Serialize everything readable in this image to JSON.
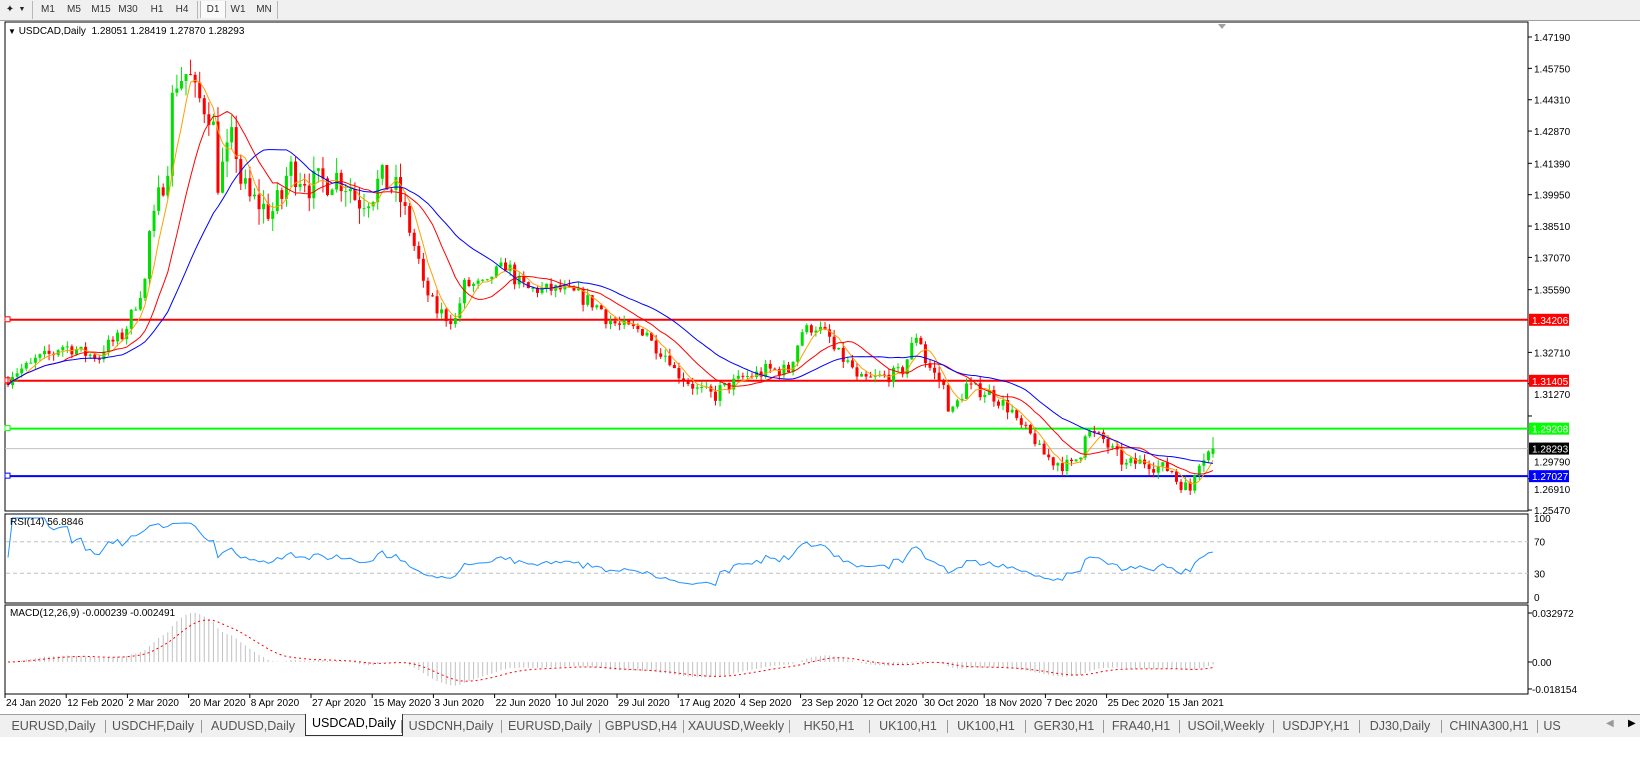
{
  "toolbar": {
    "timeframes": [
      "M1",
      "M5",
      "M15",
      "M30",
      "H1",
      "H4",
      "D1",
      "W1",
      "MN"
    ],
    "active_timeframe": "D1"
  },
  "chart": {
    "symbol_label": "USDCAD,Daily",
    "ohlc_label": "1.28051 1.28419 1.27870 1.28293",
    "price_axis": [
      "1.47190",
      "1.45750",
      "1.44310",
      "1.42870",
      "1.41390",
      "1.39950",
      "1.38510",
      "1.37070",
      "1.35590",
      "1.32710",
      "1.31270",
      "1.29790",
      "1.26910",
      "1.25470"
    ],
    "hlines": [
      {
        "price": 1.34206,
        "label": "1.34206",
        "color": "#ff0000"
      },
      {
        "price": 1.31405,
        "label": "1.31405",
        "color": "#ff0000"
      },
      {
        "price": 1.29208,
        "label": "1.29208",
        "color": "#00ff00"
      },
      {
        "price": 1.27027,
        "label": "1.27027",
        "color": "#0000ff"
      }
    ],
    "bid_line": {
      "price": 1.28293,
      "label": "1.28293",
      "color": "#c0c0c0"
    },
    "colors": {
      "bull": "#00e000",
      "bear": "#ff0000",
      "ma_fast": "#ffa000",
      "ma_mid": "#ff0000",
      "ma_slow": "#0000ff",
      "rsi": "#1e90ff",
      "macd_hist": "#c0c0c0",
      "macd_signal": "#ff0000"
    }
  },
  "rsi": {
    "label": "RSI(14) 56.8846",
    "axis": [
      "100",
      "70",
      "30",
      "0"
    ]
  },
  "macd": {
    "label": "MACD(12,26,9) -0.000239 -0.002491",
    "axis": [
      "0.032972",
      "0.00",
      "-0.018154"
    ]
  },
  "date_axis": [
    "24 Jan 2020",
    "12 Feb 2020",
    "2 Mar 2020",
    "20 Mar 2020",
    "8 Apr 2020",
    "27 Apr 2020",
    "15 May 2020",
    "3 Jun 2020",
    "22 Jun 2020",
    "10 Jul 2020",
    "29 Jul 2020",
    "17 Aug 2020",
    "4 Sep 2020",
    "23 Sep 2020",
    "12 Oct 2020",
    "30 Oct 2020",
    "18 Nov 2020",
    "7 Dec 2020",
    "25 Dec 2020",
    "15 Jan 2021"
  ],
  "tabs": [
    "EURUSD,Daily",
    "USDCHF,Daily",
    "AUDUSD,Daily",
    "USDCAD,Daily",
    "USDCNH,Daily",
    "EURUSD,Daily",
    "GBPUSD,H4",
    "XAUUSD,Weekly",
    "HK50,H1",
    "UK100,H1",
    "UK100,H1",
    "GER30,H1",
    "FRA40,H1",
    "USOil,Weekly",
    "USDJPY,H1",
    "DJ30,Daily",
    "CHINA300,H1",
    "US"
  ],
  "active_tab": "USDCAD,Daily",
  "chart_data": {
    "type": "candlestick",
    "symbol": "USDCAD",
    "timeframe": "Daily",
    "price_path": [
      [
        "2020-01-24",
        1.3153
      ],
      [
        "2020-02-11",
        1.33
      ],
      [
        "2020-02-21",
        1.325
      ],
      [
        "2020-03-02",
        1.339
      ],
      [
        "2020-03-06",
        1.36
      ],
      [
        "2020-03-11",
        1.397
      ],
      [
        "2020-03-17",
        1.452
      ],
      [
        "2020-03-19",
        1.455
      ],
      [
        "2020-03-26",
        1.438
      ],
      [
        "2020-03-30",
        1.406
      ],
      [
        "2020-04-02",
        1.424
      ],
      [
        "2020-04-08",
        1.397
      ],
      [
        "2020-04-15",
        1.392
      ],
      [
        "2020-04-21",
        1.411
      ],
      [
        "2020-04-27",
        1.404
      ],
      [
        "2020-05-05",
        1.408
      ],
      [
        "2020-05-12",
        1.397
      ],
      [
        "2020-05-19",
        1.406
      ],
      [
        "2020-05-25",
        1.397
      ],
      [
        "2020-05-29",
        1.369
      ],
      [
        "2020-06-04",
        1.346
      ],
      [
        "2020-06-10",
        1.342
      ],
      [
        "2020-06-12",
        1.358
      ],
      [
        "2020-06-19",
        1.358
      ],
      [
        "2020-06-25",
        1.367
      ],
      [
        "2020-07-02",
        1.356
      ],
      [
        "2020-07-13",
        1.356
      ],
      [
        "2020-07-21",
        1.351
      ],
      [
        "2020-07-30",
        1.339
      ],
      [
        "2020-08-07",
        1.337
      ],
      [
        "2020-08-17",
        1.319
      ],
      [
        "2020-08-21",
        1.312
      ],
      [
        "2020-08-28",
        1.307
      ],
      [
        "2020-09-04",
        1.314
      ],
      [
        "2020-09-14",
        1.319
      ],
      [
        "2020-09-21",
        1.319
      ],
      [
        "2020-09-24",
        1.337
      ],
      [
        "2020-09-29",
        1.339
      ],
      [
        "2020-10-05",
        1.328
      ],
      [
        "2020-10-12",
        1.314
      ],
      [
        "2020-10-20",
        1.316
      ],
      [
        "2020-10-26",
        1.319
      ],
      [
        "2020-10-29",
        1.335
      ],
      [
        "2020-11-05",
        1.314
      ],
      [
        "2020-11-10",
        1.3
      ],
      [
        "2020-11-13",
        1.312
      ],
      [
        "2020-11-23",
        1.307
      ],
      [
        "2020-11-27",
        1.3
      ],
      [
        "2020-12-04",
        1.287
      ],
      [
        "2020-12-10",
        1.277
      ],
      [
        "2020-12-16",
        1.275
      ],
      [
        "2020-12-21",
        1.291
      ],
      [
        "2020-12-28",
        1.284
      ],
      [
        "2021-01-01",
        1.275
      ],
      [
        "2021-01-07",
        1.277
      ],
      [
        "2021-01-15",
        1.273
      ],
      [
        "2021-01-21",
        1.264
      ],
      [
        "2021-01-22",
        1.273
      ],
      [
        "2021-01-28",
        1.2829
      ]
    ],
    "last_bar": {
      "open": 1.28051,
      "high": 1.28419,
      "low": 1.2787,
      "close": 1.28293
    },
    "indicators": [
      "RSI(14)",
      "MACD(12,26,9)"
    ],
    "ylim": [
      1.2547,
      1.4719
    ],
    "rsi_levels": [
      30,
      70
    ],
    "grid": false
  }
}
